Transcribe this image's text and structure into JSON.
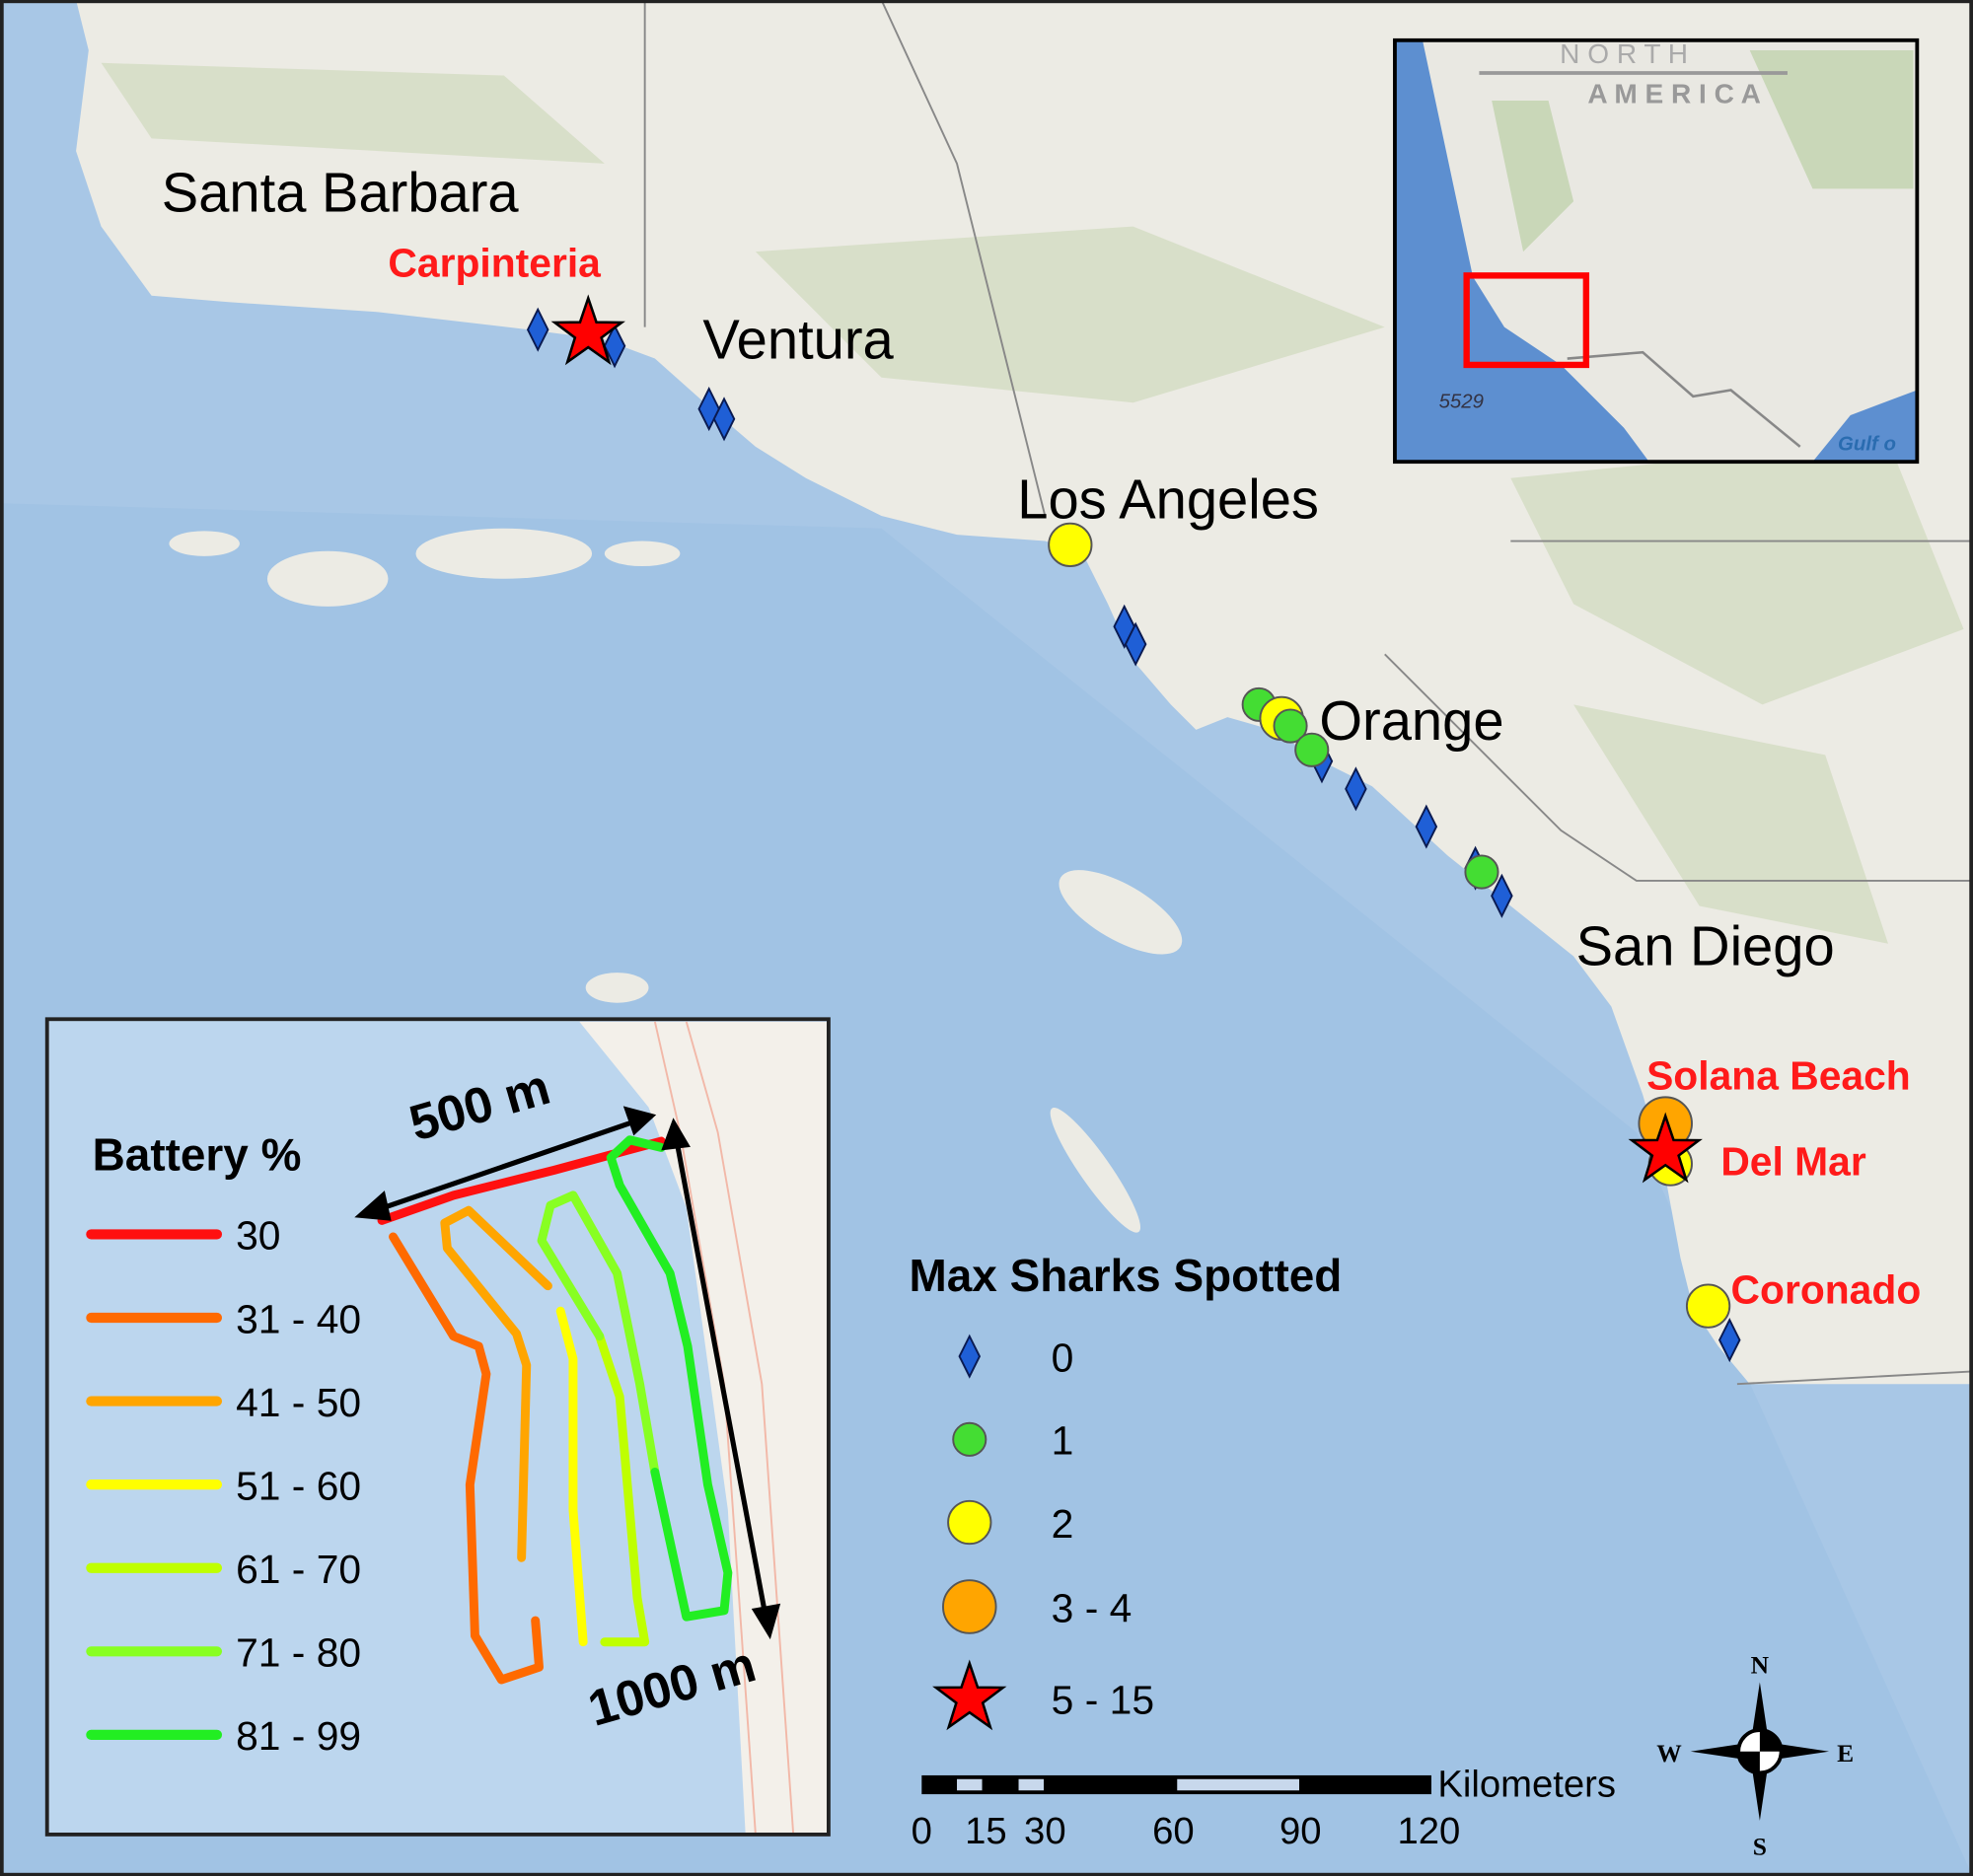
{
  "places": {
    "santa_barbara": "Santa Barbara",
    "ventura": "Ventura",
    "los_angeles": "Los Angeles",
    "orange": "Orange",
    "san_diego": "San Diego"
  },
  "beaches": {
    "carpinteria": "Carpinteria",
    "solana_beach": "Solana Beach",
    "del_mar": "Del Mar",
    "coronado": "Coronado"
  },
  "shark_legend": {
    "title": "Max Sharks Spotted",
    "items": [
      {
        "label": "0",
        "symbol": "blue-diamond",
        "color": "#1f5fd6"
      },
      {
        "label": "1",
        "symbol": "circle",
        "color": "#44dd33"
      },
      {
        "label": "2",
        "symbol": "circle",
        "color": "#ffff00"
      },
      {
        "label": "3 - 4",
        "symbol": "circle",
        "color": "#ffa500"
      },
      {
        "label": "5 - 15",
        "symbol": "star",
        "color": "#ff0000"
      }
    ]
  },
  "battery_legend": {
    "title": "Battery %",
    "items": [
      {
        "label": "30",
        "color": "#ff1010"
      },
      {
        "label": "31 - 40",
        "color": "#ff6a00"
      },
      {
        "label": "41 - 50",
        "color": "#ffa500"
      },
      {
        "label": "51 - 60",
        "color": "#ffff00"
      },
      {
        "label": "61 - 70",
        "color": "#bfff00"
      },
      {
        "label": "71 - 80",
        "color": "#88ff22"
      },
      {
        "label": "81 - 99",
        "color": "#22ee22"
      }
    ],
    "width_label": "500 m",
    "length_label": "1000 m"
  },
  "scale_bar": {
    "unit": "Kilometers",
    "ticks": [
      "0",
      "15",
      "30",
      "60",
      "90",
      "120"
    ]
  },
  "compass": {
    "n": "N",
    "s": "S",
    "e": "E",
    "w": "W"
  },
  "locator": {
    "label_north": "N O R T H",
    "label_america": "A M E R I C A",
    "depth_label": "5529",
    "gulf_label": "Gulf o",
    "extent_color": "#ff0000"
  },
  "colors": {
    "ocean": "#aac8e6",
    "land": "#ecebe4"
  }
}
